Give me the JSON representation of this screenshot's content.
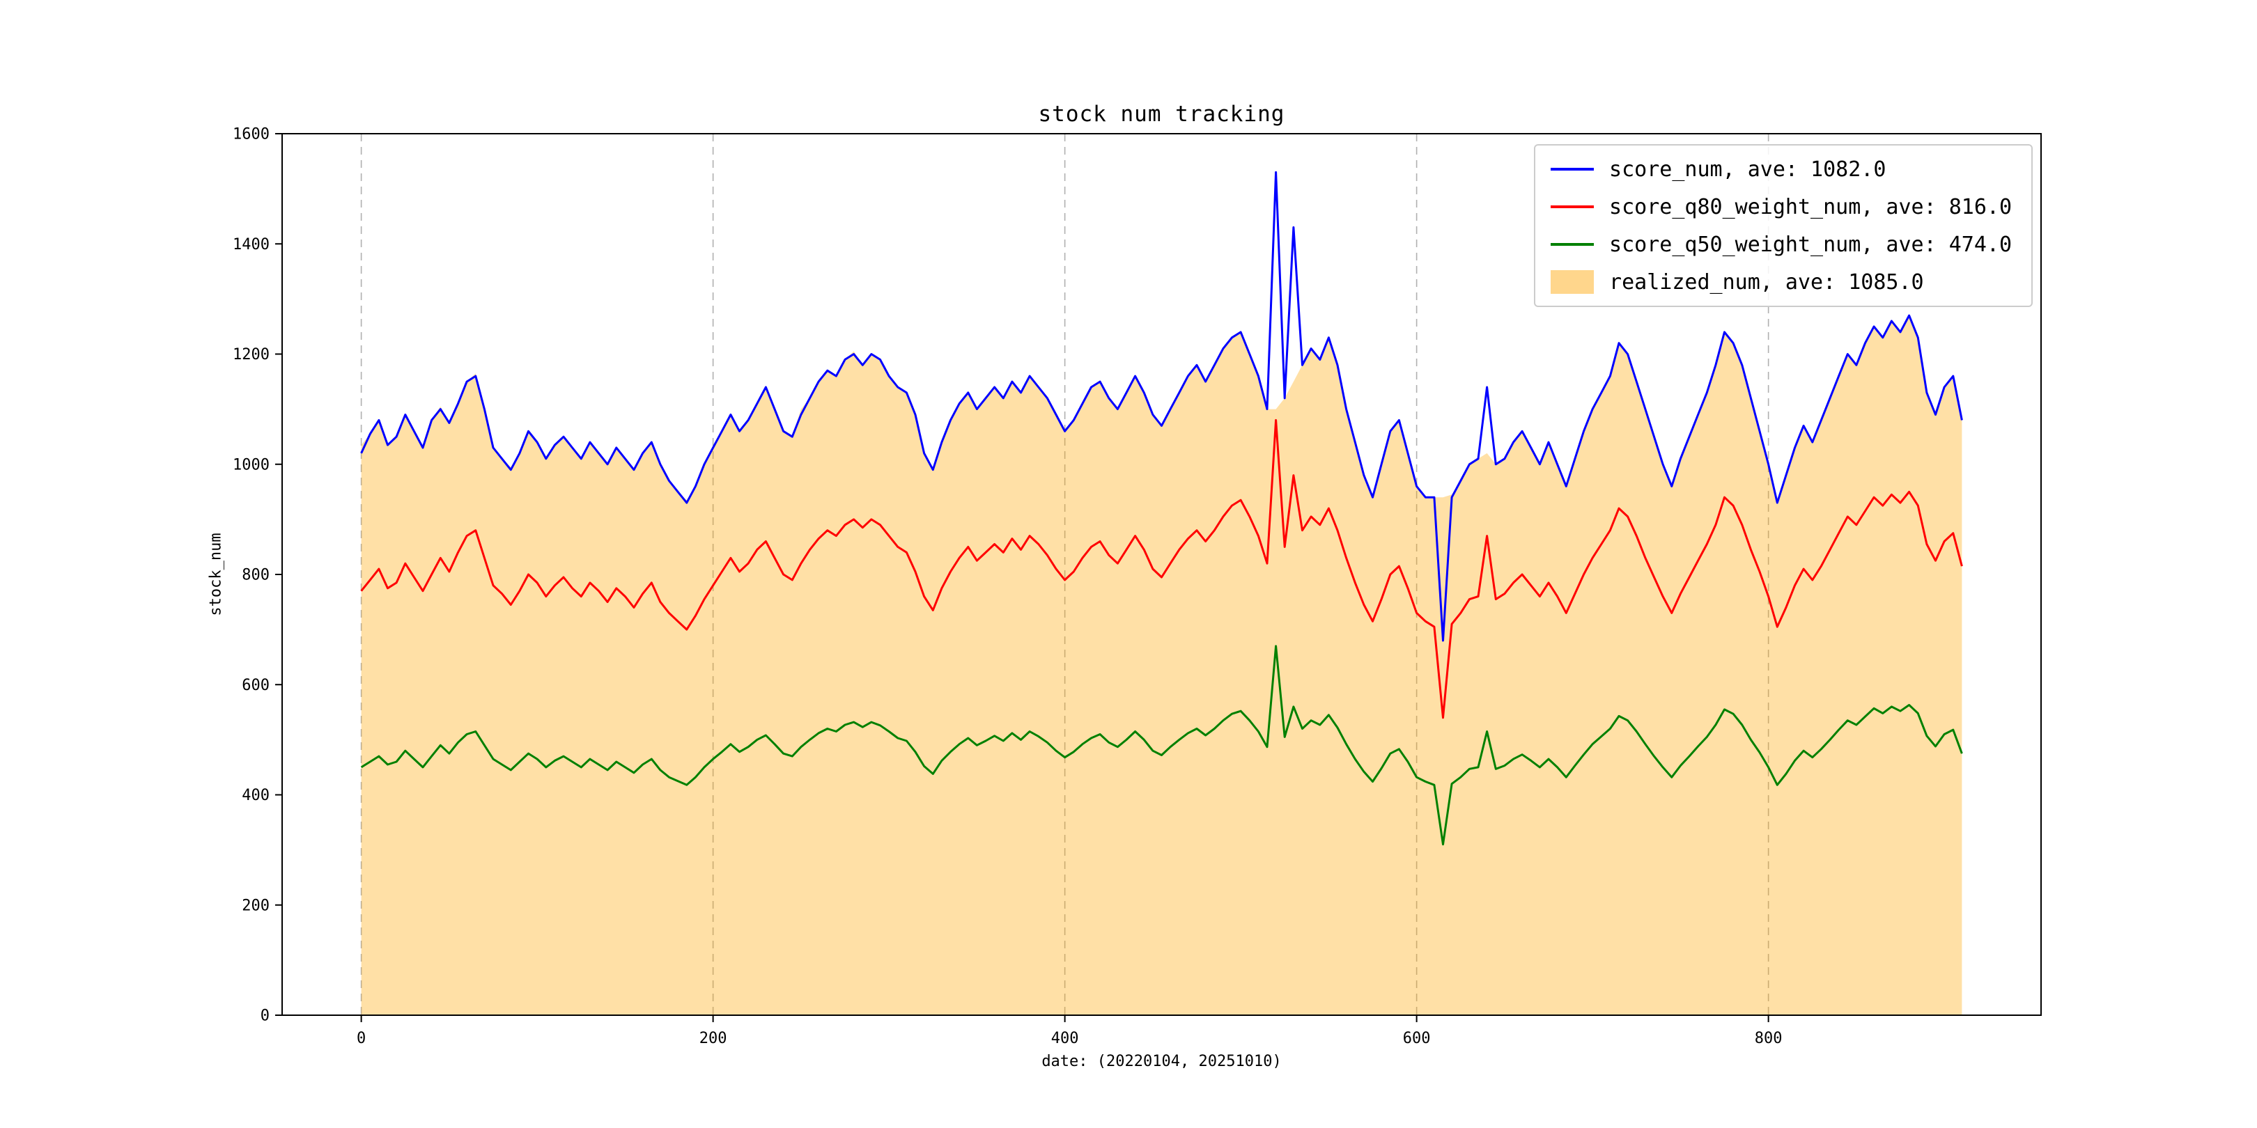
{
  "title": "stock num tracking",
  "chart_data": {
    "type": "line",
    "title": "stock num tracking",
    "xlabel": "date: (20220104, 20251010)",
    "ylabel": "stock_num",
    "xlim": [
      -45,
      955
    ],
    "ylim": [
      0,
      1600
    ],
    "xticks": [
      0,
      200,
      400,
      600,
      800
    ],
    "yticks": [
      0,
      200,
      400,
      600,
      800,
      1000,
      1200,
      1400,
      1600
    ],
    "grid": {
      "vertical_dashed": true,
      "color": "#b0b0b0"
    },
    "legend_position": "upper right",
    "x_start": 0,
    "x_step": 5,
    "series": [
      {
        "name": "score_num",
        "label": "score_num, ave: 1082.0",
        "color": "#0000ff",
        "type": "line",
        "values": [
          1020,
          1055,
          1080,
          1035,
          1050,
          1090,
          1060,
          1030,
          1080,
          1100,
          1075,
          1110,
          1150,
          1160,
          1100,
          1030,
          1010,
          990,
          1020,
          1060,
          1040,
          1010,
          1035,
          1050,
          1030,
          1010,
          1040,
          1020,
          1000,
          1030,
          1010,
          990,
          1020,
          1040,
          1000,
          970,
          950,
          930,
          960,
          1000,
          1030,
          1060,
          1090,
          1060,
          1080,
          1110,
          1140,
          1100,
          1060,
          1050,
          1090,
          1120,
          1150,
          1170,
          1160,
          1190,
          1200,
          1180,
          1200,
          1190,
          1160,
          1140,
          1130,
          1090,
          1020,
          990,
          1040,
          1080,
          1110,
          1130,
          1100,
          1120,
          1140,
          1120,
          1150,
          1130,
          1160,
          1140,
          1120,
          1090,
          1060,
          1080,
          1110,
          1140,
          1150,
          1120,
          1100,
          1130,
          1160,
          1130,
          1090,
          1070,
          1100,
          1130,
          1160,
          1180,
          1150,
          1180,
          1210,
          1230,
          1240,
          1200,
          1160,
          1100,
          1530,
          1120,
          1430,
          1180,
          1210,
          1190,
          1230,
          1180,
          1100,
          1040,
          980,
          940,
          1000,
          1060,
          1080,
          1020,
          960,
          940,
          940,
          680,
          940,
          970,
          1000,
          1010,
          1140,
          1000,
          1010,
          1040,
          1060,
          1030,
          1000,
          1040,
          1000,
          960,
          1010,
          1060,
          1100,
          1130,
          1160,
          1220,
          1200,
          1150,
          1100,
          1050,
          1000,
          960,
          1010,
          1050,
          1090,
          1130,
          1180,
          1240,
          1220,
          1180,
          1120,
          1060,
          1000,
          930,
          980,
          1030,
          1070,
          1040,
          1080,
          1120,
          1160,
          1200,
          1180,
          1220,
          1250,
          1230,
          1260,
          1240,
          1270,
          1230,
          1130,
          1090,
          1140,
          1160,
          1080
        ]
      },
      {
        "name": "score_q80_weight_num",
        "label": "score_q80_weight_num, ave: 816.0",
        "color": "#ff0000",
        "type": "line",
        "values": [
          770,
          790,
          810,
          775,
          785,
          820,
          795,
          770,
          800,
          830,
          805,
          840,
          870,
          880,
          830,
          780,
          765,
          745,
          770,
          800,
          785,
          760,
          780,
          795,
          775,
          760,
          785,
          770,
          750,
          775,
          760,
          740,
          765,
          785,
          750,
          730,
          715,
          700,
          725,
          755,
          780,
          805,
          830,
          805,
          820,
          845,
          860,
          830,
          800,
          790,
          820,
          845,
          865,
          880,
          870,
          890,
          900,
          885,
          900,
          890,
          870,
          850,
          840,
          805,
          760,
          735,
          775,
          805,
          830,
          850,
          825,
          840,
          855,
          840,
          865,
          845,
          870,
          855,
          835,
          810,
          790,
          805,
          830,
          850,
          860,
          835,
          820,
          845,
          870,
          845,
          810,
          795,
          820,
          845,
          865,
          880,
          860,
          880,
          905,
          925,
          935,
          905,
          870,
          820,
          1080,
          850,
          980,
          880,
          905,
          890,
          920,
          880,
          830,
          785,
          745,
          715,
          755,
          800,
          815,
          775,
          730,
          715,
          705,
          540,
          710,
          730,
          755,
          760,
          870,
          755,
          765,
          785,
          800,
          780,
          760,
          785,
          760,
          730,
          765,
          800,
          830,
          855,
          880,
          920,
          905,
          870,
          830,
          795,
          760,
          730,
          765,
          795,
          825,
          855,
          890,
          940,
          925,
          890,
          845,
          805,
          760,
          705,
          740,
          780,
          810,
          790,
          815,
          845,
          875,
          905,
          890,
          915,
          940,
          925,
          945,
          930,
          950,
          925,
          855,
          825,
          860,
          875,
          815
        ]
      },
      {
        "name": "score_q50_weight_num",
        "label": "score_q50_weight_num, ave: 474.0",
        "color": "#008000",
        "type": "line",
        "values": [
          450,
          460,
          470,
          455,
          460,
          480,
          465,
          450,
          470,
          490,
          475,
          495,
          510,
          515,
          490,
          465,
          455,
          445,
          460,
          475,
          465,
          450,
          462,
          470,
          460,
          450,
          465,
          455,
          445,
          460,
          450,
          440,
          455,
          465,
          445,
          432,
          425,
          418,
          432,
          450,
          465,
          478,
          492,
          478,
          487,
          500,
          508,
          492,
          475,
          470,
          487,
          500,
          512,
          520,
          515,
          527,
          532,
          523,
          532,
          526,
          515,
          503,
          498,
          478,
          452,
          438,
          462,
          478,
          492,
          503,
          490,
          498,
          507,
          498,
          512,
          500,
          515,
          506,
          495,
          480,
          468,
          478,
          492,
          503,
          510,
          495,
          487,
          500,
          515,
          500,
          480,
          472,
          487,
          500,
          512,
          520,
          508,
          520,
          535,
          547,
          552,
          535,
          515,
          487,
          670,
          505,
          560,
          520,
          535,
          527,
          545,
          522,
          492,
          465,
          442,
          424,
          448,
          475,
          483,
          460,
          432,
          424,
          418,
          310,
          420,
          432,
          447,
          450,
          515,
          447,
          453,
          465,
          473,
          462,
          450,
          465,
          450,
          432,
          453,
          473,
          492,
          506,
          520,
          543,
          535,
          515,
          492,
          470,
          450,
          432,
          453,
          470,
          488,
          505,
          527,
          555,
          547,
          527,
          500,
          477,
          450,
          418,
          438,
          462,
          480,
          468,
          483,
          500,
          518,
          535,
          527,
          542,
          557,
          548,
          560,
          552,
          563,
          548,
          507,
          488,
          510,
          518,
          475
        ]
      },
      {
        "name": "realized_num",
        "label": "realized_num, ave: 1085.0",
        "color": "#ffa500",
        "type": "area",
        "fill_opacity": 0.35,
        "values": [
          1035,
          1055,
          1080,
          1035,
          1050,
          1090,
          1060,
          1030,
          1080,
          1105,
          1075,
          1110,
          1150,
          1165,
          1100,
          1030,
          1010,
          995,
          1020,
          1060,
          1040,
          1010,
          1035,
          1050,
          1030,
          1010,
          1040,
          1020,
          1000,
          1030,
          1010,
          990,
          1020,
          1040,
          1000,
          970,
          950,
          935,
          960,
          1000,
          1030,
          1060,
          1090,
          1060,
          1080,
          1110,
          1140,
          1100,
          1060,
          1050,
          1100,
          1120,
          1150,
          1170,
          1160,
          1190,
          1205,
          1180,
          1200,
          1190,
          1160,
          1140,
          1130,
          1090,
          1020,
          990,
          1040,
          1080,
          1110,
          1130,
          1100,
          1120,
          1140,
          1120,
          1150,
          1130,
          1160,
          1140,
          1120,
          1090,
          1060,
          1080,
          1110,
          1140,
          1150,
          1120,
          1100,
          1130,
          1160,
          1130,
          1090,
          1070,
          1100,
          1130,
          1160,
          1180,
          1150,
          1180,
          1210,
          1230,
          1240,
          1200,
          1160,
          1100,
          1100,
          1120,
          1150,
          1180,
          1210,
          1190,
          1230,
          1180,
          1100,
          1040,
          980,
          940,
          1000,
          1060,
          1080,
          1020,
          960,
          940,
          940,
          940,
          945,
          970,
          1000,
          1010,
          1020,
          1000,
          1010,
          1040,
          1060,
          1030,
          1000,
          1040,
          1000,
          960,
          1010,
          1060,
          1100,
          1130,
          1160,
          1220,
          1200,
          1150,
          1100,
          1050,
          1000,
          960,
          1010,
          1050,
          1090,
          1130,
          1180,
          1240,
          1220,
          1180,
          1120,
          1060,
          1000,
          935,
          980,
          1030,
          1070,
          1040,
          1080,
          1120,
          1160,
          1200,
          1180,
          1220,
          1250,
          1230,
          1260,
          1240,
          1270,
          1230,
          1130,
          1090,
          1140,
          1160,
          1080
        ]
      }
    ]
  }
}
